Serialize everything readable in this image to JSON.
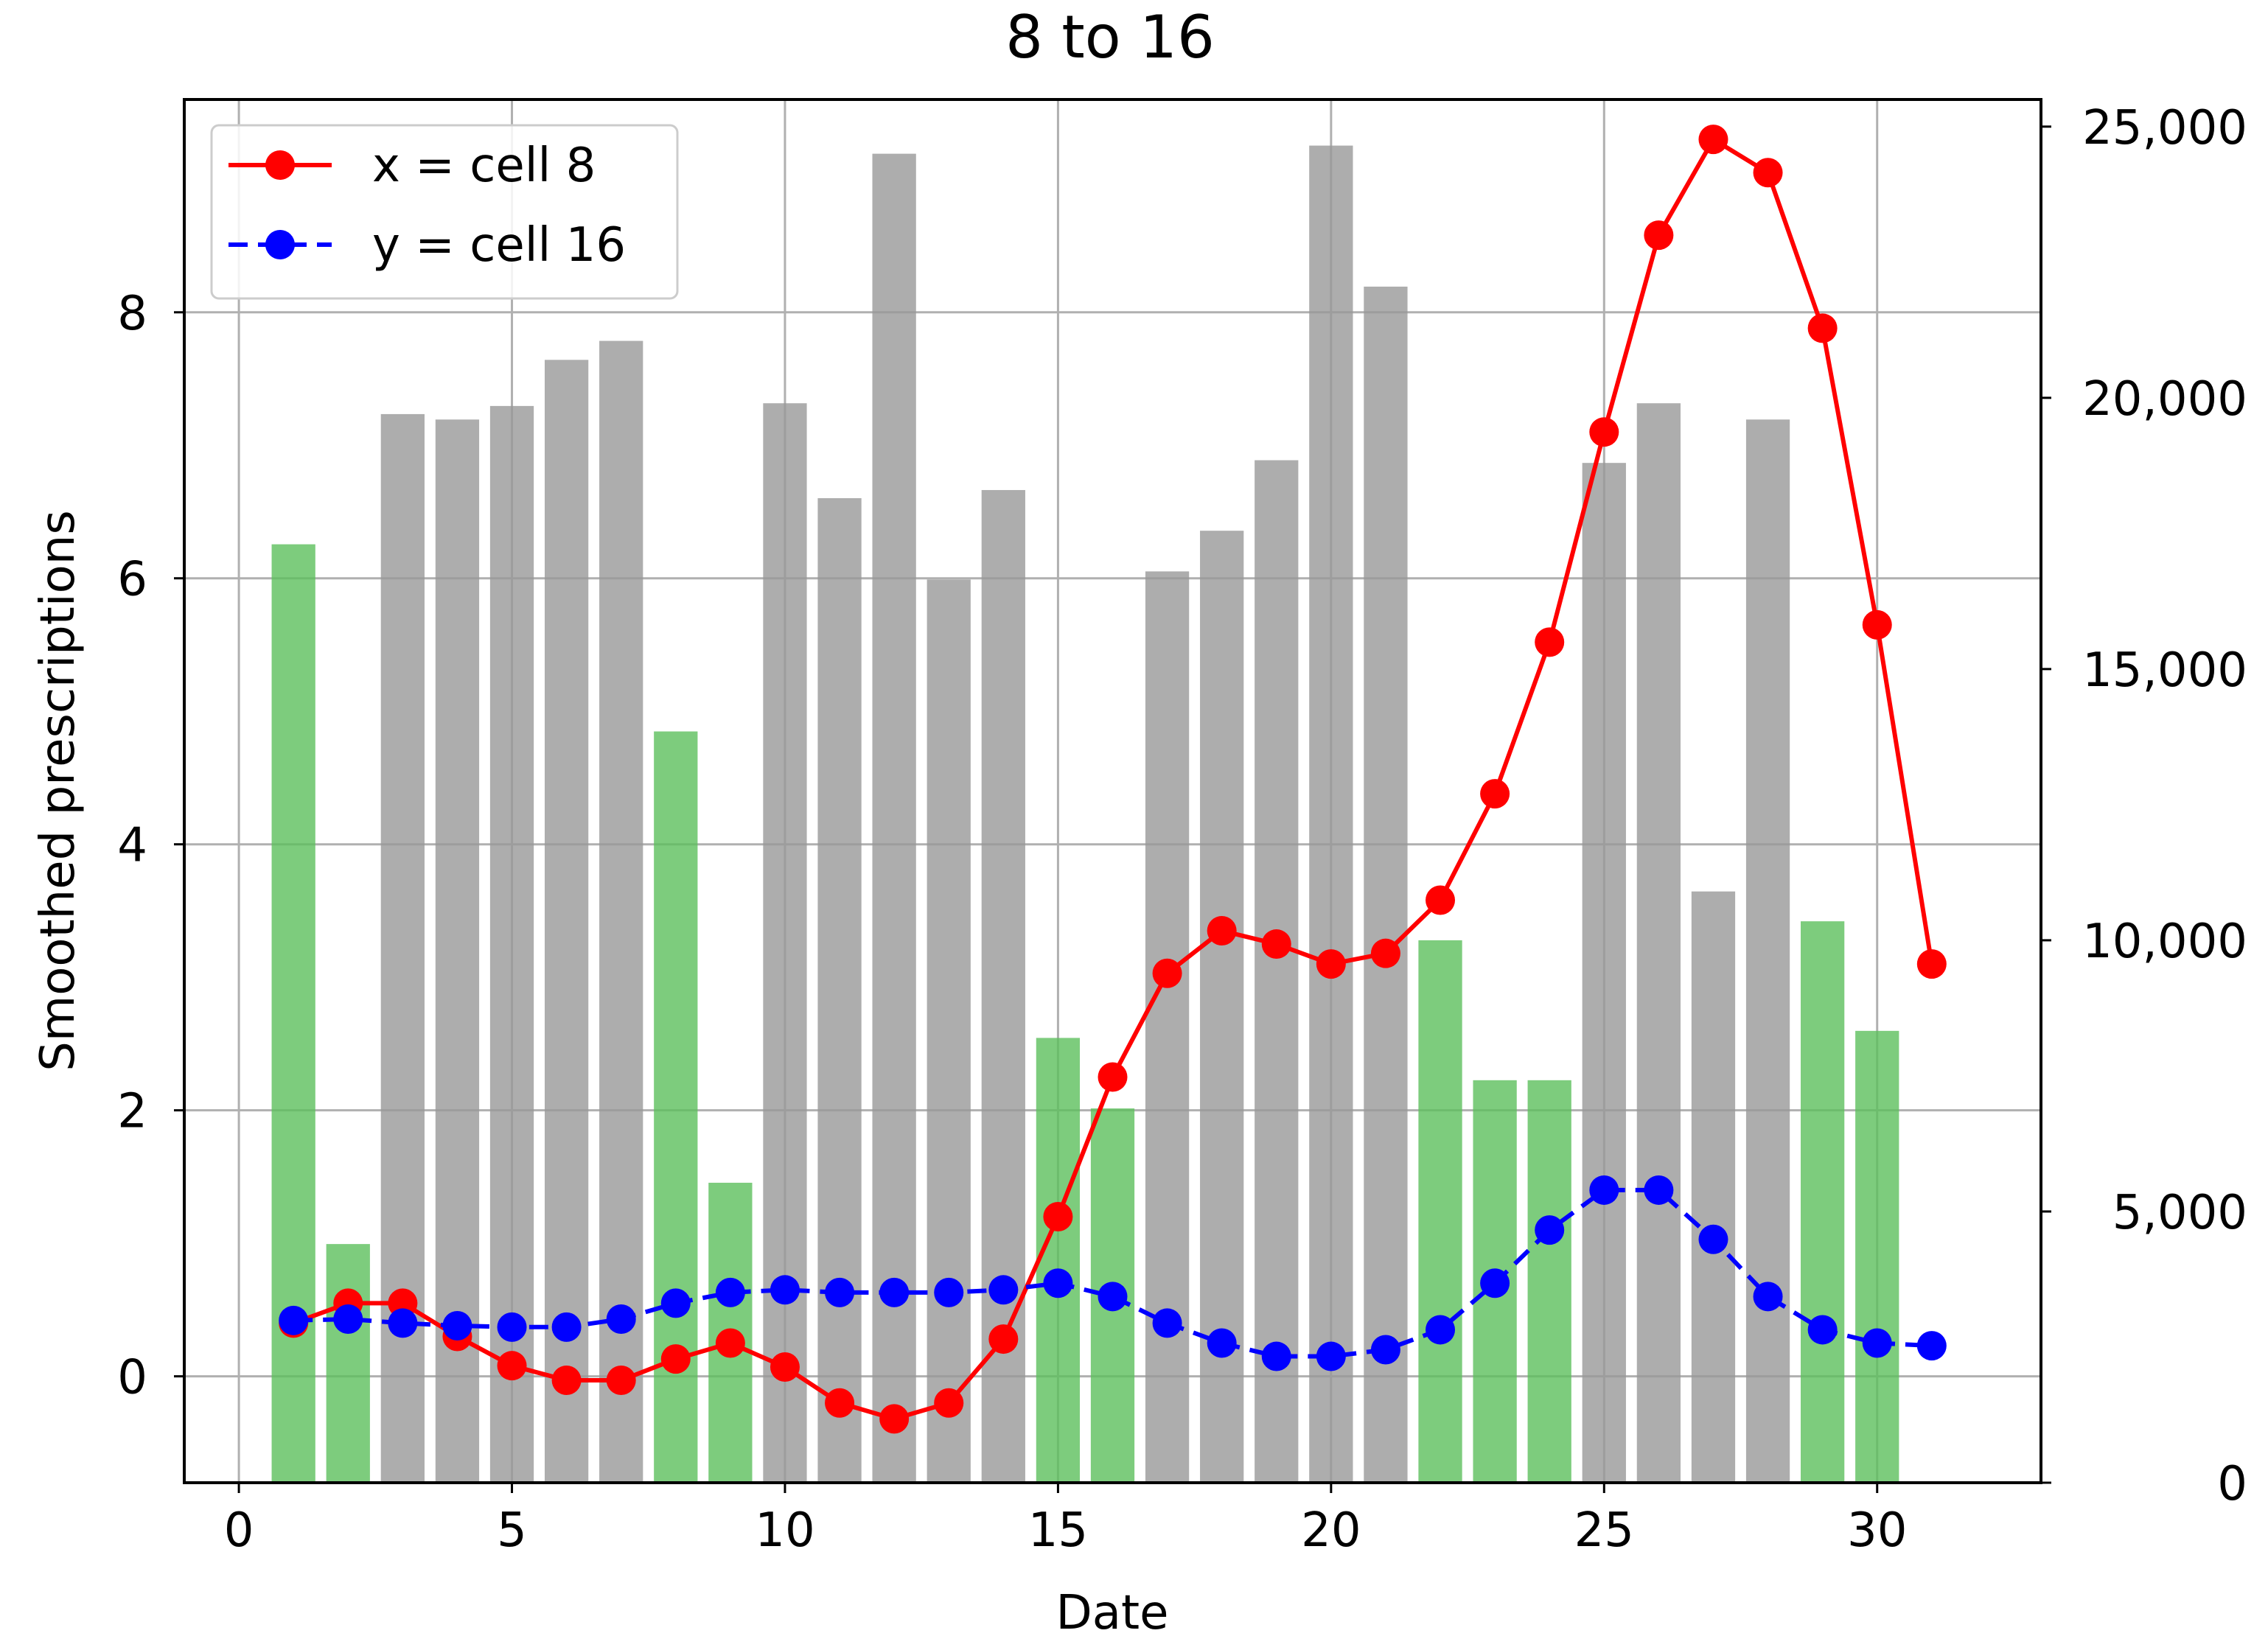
{
  "chart_data": {
    "type": "bar",
    "title": "8 to 16",
    "xlabel": "Date",
    "ylabel": "Smoothed prescriptions",
    "xlim": [
      -1,
      33
    ],
    "ylim": [
      -0.8,
      9.6
    ],
    "y2lim": [
      0,
      25500
    ],
    "xticks": [
      0,
      5,
      10,
      15,
      20,
      25,
      30
    ],
    "yticks": [
      0,
      2,
      4,
      6,
      8
    ],
    "y2ticks": [
      0,
      5000,
      10000,
      15000,
      20000,
      25000
    ],
    "y2tick_labels": [
      "0",
      "5,000",
      "10,000",
      "15,000",
      "20,000",
      "25,000"
    ],
    "grid": true,
    "legend_position": "top-left",
    "bars": {
      "axis": "right",
      "x": [
        1,
        2,
        3,
        4,
        5,
        6,
        7,
        8,
        9,
        10,
        11,
        12,
        13,
        14,
        15,
        16,
        17,
        18,
        19,
        20,
        21,
        22,
        23,
        24,
        25,
        26,
        27,
        28,
        29,
        30
      ],
      "values": [
        17300,
        4400,
        19700,
        19600,
        19850,
        20700,
        21050,
        13850,
        5530,
        19900,
        18150,
        24500,
        16650,
        18300,
        8200,
        6900,
        16800,
        17550,
        18850,
        24650,
        22050,
        10000,
        7420,
        7420,
        18800,
        19900,
        10900,
        19600,
        10350,
        8330
      ],
      "colors": [
        "#5cbf5c",
        "#5cbf5c",
        "#999999",
        "#999999",
        "#999999",
        "#999999",
        "#999999",
        "#5cbf5c",
        "#5cbf5c",
        "#999999",
        "#999999",
        "#999999",
        "#999999",
        "#999999",
        "#5cbf5c",
        "#5cbf5c",
        "#999999",
        "#999999",
        "#999999",
        "#999999",
        "#999999",
        "#5cbf5c",
        "#5cbf5c",
        "#5cbf5c",
        "#999999",
        "#999999",
        "#999999",
        "#999999",
        "#5cbf5c",
        "#5cbf5c"
      ]
    },
    "series": [
      {
        "name": "x = cell 8",
        "color": "#ff0000",
        "style": "solid",
        "marker": "circle",
        "x": [
          1,
          2,
          3,
          4,
          5,
          6,
          7,
          8,
          9,
          10,
          11,
          12,
          13,
          14,
          15,
          16,
          17,
          18,
          19,
          20,
          21,
          22,
          23,
          24,
          25,
          26,
          27,
          28,
          29,
          30,
          31
        ],
        "values": [
          0.4,
          0.55,
          0.55,
          0.3,
          0.08,
          -0.03,
          -0.03,
          0.13,
          0.25,
          0.07,
          -0.2,
          -0.32,
          -0.2,
          0.28,
          1.2,
          2.25,
          3.03,
          3.35,
          3.25,
          3.1,
          3.18,
          3.58,
          4.38,
          5.52,
          7.1,
          8.58,
          9.3,
          9.05,
          7.88,
          5.65,
          3.1
        ]
      },
      {
        "name": "y = cell 16",
        "color": "#0000ff",
        "style": "dashed",
        "marker": "circle",
        "x": [
          1,
          2,
          3,
          4,
          5,
          6,
          7,
          8,
          9,
          10,
          11,
          12,
          13,
          14,
          15,
          16,
          17,
          18,
          19,
          20,
          21,
          22,
          23,
          24,
          25,
          26,
          27,
          28,
          29,
          30,
          31
        ],
        "values": [
          0.42,
          0.43,
          0.4,
          0.38,
          0.37,
          0.37,
          0.43,
          0.55,
          0.63,
          0.65,
          0.63,
          0.63,
          0.63,
          0.65,
          0.7,
          0.6,
          0.4,
          0.25,
          0.15,
          0.15,
          0.2,
          0.35,
          0.7,
          1.1,
          1.4,
          1.4,
          1.03,
          0.6,
          0.35,
          0.25,
          0.23
        ]
      }
    ]
  }
}
